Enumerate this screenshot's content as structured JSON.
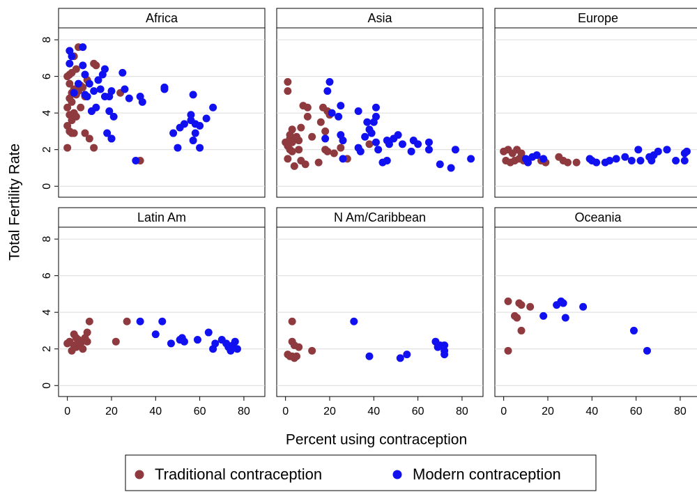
{
  "ylabel": "Total Fertility Rate",
  "xlabel": "Percent using contraception",
  "xlim": [
    -4,
    89.5
  ],
  "ylim": [
    -0.6,
    8.65
  ],
  "xticks": [
    0,
    20,
    40,
    60,
    80
  ],
  "yticks": [
    0,
    2,
    4,
    6,
    8
  ],
  "grid": true,
  "legend": "bottom",
  "series": [
    {
      "name": "Traditional contraception",
      "color": "#8f3a3f"
    },
    {
      "name": "Modern contraception",
      "color": "#1010f0"
    }
  ],
  "chart_data": [
    {
      "type": "scatter",
      "title": "Africa",
      "series": [
        {
          "x": [
            0,
            0,
            0,
            0,
            1,
            1,
            1,
            1,
            1,
            2,
            2,
            2,
            2,
            2,
            3,
            3,
            3,
            3,
            4,
            4,
            4,
            5,
            5,
            6,
            6,
            7,
            8,
            8,
            9,
            10,
            11,
            12,
            12,
            13,
            20,
            24,
            33
          ],
          "values": [
            2.1,
            3.3,
            4.3,
            6.0,
            6.1,
            5.6,
            4.8,
            3.9,
            3.0,
            2.9,
            3.6,
            4.6,
            5.1,
            6.2,
            7.1,
            5.3,
            4.0,
            2.9,
            6.4,
            5.0,
            3.8,
            7.6,
            5.2,
            5.5,
            4.3,
            5.4,
            2.9,
            4.9,
            5.8,
            2.6,
            4.1,
            2.1,
            6.7,
            6.6,
            2.6,
            5.1,
            1.4
          ]
        },
        {
          "x": [
            1,
            1,
            2,
            3,
            5,
            7,
            7,
            8,
            8,
            9,
            10,
            11,
            12,
            13,
            14,
            15,
            16,
            17,
            17,
            18,
            19,
            19,
            20,
            20,
            21,
            25,
            26,
            28,
            31,
            33,
            34,
            44,
            44,
            48,
            50,
            51,
            53,
            56,
            56,
            57,
            57,
            58,
            58,
            60,
            60,
            63,
            66
          ],
          "values": [
            7.4,
            6.7,
            7.1,
            5.1,
            5.6,
            6.6,
            7.6,
            5.0,
            6.1,
            4.9,
            5.6,
            4.1,
            5.2,
            4.3,
            5.8,
            5.3,
            6.1,
            4.9,
            6.4,
            2.9,
            4.9,
            4.1,
            5.2,
            2.6,
            3.8,
            6.2,
            5.3,
            4.8,
            1.4,
            4.9,
            4.6,
            5.4,
            5.3,
            2.9,
            2.1,
            3.2,
            3.4,
            3.9,
            3.6,
            2.5,
            5.0,
            2.9,
            3.4,
            2.1,
            3.3,
            3.7,
            4.3
          ]
        }
      ]
    },
    {
      "type": "scatter",
      "title": "Asia",
      "series": [
        {
          "x": [
            1,
            1,
            0,
            1,
            1,
            2,
            2,
            2,
            3,
            3,
            3,
            4,
            4,
            5,
            6,
            6,
            7,
            7,
            8,
            9,
            10,
            10,
            12,
            15,
            16,
            17,
            18,
            18,
            19,
            19,
            20,
            22,
            25,
            28,
            38
          ],
          "values": [
            5.7,
            5.2,
            2.4,
            2.2,
            1.5,
            2.6,
            2.0,
            2.8,
            3.1,
            2.4,
            1.9,
            1.1,
            2.6,
            2.7,
            2.0,
            2.5,
            3.2,
            1.4,
            4.4,
            1.2,
            4.3,
            3.8,
            2.7,
            1.3,
            3.5,
            4.3,
            2.0,
            3.0,
            4.1,
            1.9,
            3.9,
            1.8,
            2.1,
            1.5,
            2.3
          ]
        },
        {
          "x": [
            18,
            19,
            20,
            21,
            24,
            25,
            25,
            26,
            26,
            33,
            33,
            34,
            36,
            37,
            38,
            39,
            40,
            41,
            41,
            41,
            42,
            44,
            46,
            46,
            47,
            49,
            51,
            53,
            57,
            58,
            60,
            65,
            65,
            70,
            75,
            77,
            84
          ],
          "values": [
            2.6,
            5.2,
            5.7,
            4.0,
            3.8,
            4.4,
            2.8,
            2.5,
            1.5,
            2.1,
            4.1,
            1.9,
            2.7,
            3.5,
            3.1,
            2.9,
            3.5,
            2.4,
            3.8,
            4.3,
            2.0,
            1.3,
            1.4,
            2.5,
            2.3,
            2.6,
            2.8,
            2.3,
            1.9,
            2.5,
            2.3,
            2.0,
            2.4,
            1.2,
            1.0,
            2.0,
            1.5
          ]
        }
      ]
    },
    {
      "type": "scatter",
      "title": "Europe",
      "series": [
        {
          "x": [
            0,
            1,
            2,
            3,
            4,
            5,
            6,
            7,
            8,
            9,
            17,
            19,
            25,
            27,
            29,
            33
          ],
          "values": [
            1.9,
            1.4,
            2.0,
            1.3,
            1.8,
            1.4,
            2.0,
            1.5,
            1.8,
            1.4,
            1.4,
            1.3,
            1.6,
            1.4,
            1.3,
            1.3
          ]
        },
        {
          "x": [
            10,
            11,
            13,
            15,
            18,
            39,
            40,
            42,
            46,
            48,
            51,
            55,
            58,
            61,
            62,
            66,
            67,
            68,
            70,
            74,
            78,
            82,
            83,
            82
          ],
          "values": [
            1.5,
            1.3,
            1.6,
            1.7,
            1.5,
            1.5,
            1.4,
            1.3,
            1.3,
            1.4,
            1.5,
            1.6,
            1.4,
            2.0,
            1.4,
            1.6,
            1.4,
            1.7,
            1.9,
            2.0,
            1.4,
            1.8,
            1.9,
            1.4
          ]
        }
      ]
    },
    {
      "type": "scatter",
      "title": "Latin Am",
      "series": [
        {
          "x": [
            0,
            1,
            2,
            3,
            3,
            4,
            4,
            5,
            6,
            7,
            8,
            9,
            9,
            10,
            22,
            27
          ],
          "values": [
            2.3,
            2.4,
            1.9,
            2.8,
            2.2,
            2.6,
            2.1,
            2.5,
            2.3,
            2.0,
            2.6,
            2.4,
            2.9,
            3.5,
            2.4,
            3.5
          ]
        },
        {
          "x": [
            33,
            40,
            43,
            47,
            51,
            52,
            53,
            59,
            64,
            66,
            67,
            70,
            72,
            73,
            74,
            75,
            76,
            77
          ],
          "values": [
            3.5,
            2.8,
            3.5,
            2.3,
            2.5,
            2.6,
            2.4,
            2.5,
            2.9,
            2.0,
            2.3,
            2.5,
            2.3,
            2.1,
            1.9,
            2.2,
            2.4,
            2.0
          ]
        }
      ]
    },
    {
      "type": "scatter",
      "title": "N Am/Caribbean",
      "series": [
        {
          "x": [
            1,
            3,
            3,
            3,
            4,
            4,
            5,
            6,
            12,
            2
          ],
          "values": [
            1.7,
            3.5,
            2.4,
            1.6,
            1.5,
            2.2,
            1.6,
            2.1,
            1.9,
            1.6
          ]
        },
        {
          "x": [
            31,
            38,
            52,
            55,
            68,
            69,
            70,
            72,
            72,
            72
          ],
          "values": [
            3.5,
            1.6,
            1.5,
            1.7,
            2.4,
            2.1,
            2.2,
            2.2,
            1.7,
            1.9
          ]
        }
      ]
    },
    {
      "type": "scatter",
      "title": "Oceania",
      "series": [
        {
          "x": [
            2,
            2,
            5,
            6,
            7,
            8,
            8,
            12
          ],
          "values": [
            4.6,
            1.9,
            3.8,
            3.7,
            4.5,
            4.4,
            3.0,
            4.3
          ]
        },
        {
          "x": [
            18,
            24,
            26,
            27,
            28,
            36,
            59,
            65
          ],
          "values": [
            3.8,
            4.4,
            4.6,
            4.5,
            3.7,
            4.3,
            3.0,
            1.9
          ]
        }
      ]
    }
  ]
}
